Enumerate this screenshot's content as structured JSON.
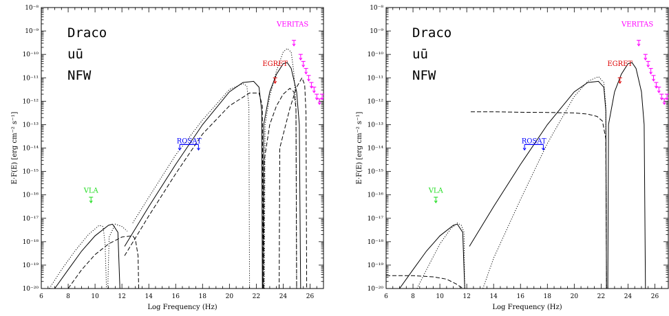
{
  "chart_data": [
    {
      "type": "line",
      "xlabel": "Log Frequency (Hz)",
      "ylabel": "E·F(E) [erg cm⁻² s⁻¹]",
      "xlim": [
        6,
        27
      ],
      "ylim_log10": [
        -20,
        -8
      ],
      "x_ticks": [
        "6",
        "8",
        "10",
        "12",
        "14",
        "16",
        "18",
        "20",
        "22",
        "24",
        "26"
      ],
      "y_ticks": [
        "10⁻²⁰",
        "10⁻¹⁹",
        "10⁻¹⁸",
        "10⁻¹⁷",
        "10⁻¹⁶",
        "10⁻¹⁵",
        "10⁻¹⁴",
        "10⁻¹³",
        "10⁻¹²",
        "10⁻¹¹",
        "10⁻¹⁰",
        "10⁻⁹",
        "10⁻⁸"
      ],
      "labels": [
        "Draco",
        "uū",
        "NFW"
      ],
      "annotations": [
        {
          "text": "VLA",
          "color": "#22dd22",
          "x": 9.7,
          "y_log10": -15.9
        },
        {
          "text": "ROSAT",
          "color": "#0000ff",
          "x": 17.0,
          "y_log10": -13.8
        },
        {
          "text": "EGRET",
          "color": "#dd0000",
          "x": 23.4,
          "y_log10": -10.5
        },
        {
          "text": "VERITAS",
          "color": "#ff00ff",
          "x": 24.7,
          "y_log10": -8.8
        }
      ],
      "upper_limits": [
        {
          "name": "VLA",
          "color": "#22dd22",
          "points": [
            [
              9.7,
              -16.1
            ]
          ]
        },
        {
          "name": "ROSAT",
          "color": "#0000ff",
          "points": [
            [
              17.0,
              -13.85
            ]
          ],
          "band": [
            16.3,
            17.7
          ]
        },
        {
          "name": "EGRET",
          "color": "#dd0000",
          "points": [
            [
              23.4,
              -11.0
            ]
          ]
        },
        {
          "name": "VERITAS",
          "color": "#ff00ff",
          "points": [
            [
              24.8,
              -9.4
            ],
            [
              25.3,
              -10.0
            ],
            [
              25.5,
              -10.3
            ],
            [
              25.7,
              -10.6
            ],
            [
              25.9,
              -10.9
            ],
            [
              26.1,
              -11.2
            ],
            [
              26.3,
              -11.4
            ],
            [
              26.5,
              -11.7
            ],
            [
              26.7,
              -11.9
            ],
            [
              26.9,
              -11.7
            ]
          ]
        }
      ],
      "series": [
        {
          "style": "solid",
          "points": [
            [
              7.0,
              -20.0
            ],
            [
              8.0,
              -19.2
            ],
            [
              9.0,
              -18.4
            ],
            [
              10.0,
              -17.75
            ],
            [
              11.0,
              -17.3
            ],
            [
              11.3,
              -17.25
            ],
            [
              11.7,
              -17.6
            ],
            [
              11.85,
              -20.0
            ]
          ]
        },
        {
          "style": "dotted",
          "points": [
            [
              6.6,
              -20.0
            ],
            [
              7.5,
              -19.2
            ],
            [
              8.5,
              -18.4
            ],
            [
              9.5,
              -17.7
            ],
            [
              10.3,
              -17.3
            ],
            [
              10.6,
              -17.35
            ],
            [
              10.75,
              -18.1
            ],
            [
              10.85,
              -20.0
            ]
          ]
        },
        {
          "style": "dotted",
          "points": [
            [
              10.95,
              -20.0
            ],
            [
              11.05,
              -17.8
            ],
            [
              11.5,
              -17.25
            ],
            [
              12.0,
              -17.35
            ],
            [
              12.4,
              -17.55
            ]
          ]
        },
        {
          "style": "dashed",
          "points": [
            [
              8.0,
              -20.0
            ],
            [
              9.0,
              -19.2
            ],
            [
              10.0,
              -18.55
            ],
            [
              11.0,
              -18.1
            ],
            [
              12.0,
              -17.8
            ],
            [
              12.8,
              -17.75
            ],
            [
              13.0,
              -17.9
            ],
            [
              13.2,
              -18.6
            ],
            [
              13.25,
              -20.0
            ]
          ]
        },
        {
          "style": "solid",
          "points": [
            [
              12.2,
              -18.2
            ],
            [
              14.0,
              -16.5
            ],
            [
              16.0,
              -14.7
            ],
            [
              18.0,
              -13.0
            ],
            [
              20.0,
              -11.6
            ],
            [
              21.0,
              -11.2
            ],
            [
              21.8,
              -11.15
            ],
            [
              22.2,
              -11.4
            ],
            [
              22.4,
              -12.4
            ],
            [
              22.45,
              -20.0
            ]
          ]
        },
        {
          "style": "dotted",
          "points": [
            [
              12.8,
              -17.2
            ],
            [
              14.0,
              -16.1
            ],
            [
              16.0,
              -14.3
            ],
            [
              18.0,
              -12.8
            ],
            [
              20.0,
              -11.5
            ],
            [
              21.0,
              -11.25
            ],
            [
              21.3,
              -11.35
            ],
            [
              21.45,
              -12.2
            ],
            [
              21.5,
              -20.0
            ]
          ]
        },
        {
          "style": "dashed",
          "points": [
            [
              12.2,
              -18.6
            ],
            [
              14.0,
              -16.9
            ],
            [
              16.0,
              -15.1
            ],
            [
              18.0,
              -13.4
            ],
            [
              20.0,
              -12.2
            ],
            [
              21.5,
              -11.65
            ],
            [
              22.2,
              -11.65
            ],
            [
              22.45,
              -12.2
            ],
            [
              22.5,
              -20.0
            ]
          ]
        },
        {
          "style": "solid",
          "points": [
            [
              22.5,
              -20.0
            ],
            [
              22.55,
              -13.0
            ],
            [
              23.0,
              -11.6
            ],
            [
              23.5,
              -10.85
            ],
            [
              24.0,
              -10.4
            ],
            [
              24.3,
              -10.35
            ],
            [
              24.6,
              -10.6
            ],
            [
              25.0,
              -11.6
            ],
            [
              25.2,
              -13.0
            ],
            [
              25.3,
              -20.0
            ]
          ]
        },
        {
          "style": "dotted",
          "points": [
            [
              22.6,
              -20.0
            ],
            [
              22.65,
              -13.0
            ],
            [
              23.0,
              -11.8
            ],
            [
              23.5,
              -10.7
            ],
            [
              24.0,
              -9.9
            ],
            [
              24.3,
              -9.75
            ],
            [
              24.6,
              -9.9
            ],
            [
              24.8,
              -10.8
            ],
            [
              24.95,
              -12.2
            ],
            [
              25.0,
              -20.0
            ]
          ]
        },
        {
          "style": "dashed",
          "points": [
            [
              22.55,
              -20.0
            ],
            [
              22.6,
              -14.5
            ],
            [
              23.0,
              -13.0
            ],
            [
              23.5,
              -12.2
            ],
            [
              24.0,
              -11.7
            ],
            [
              24.5,
              -11.45
            ],
            [
              24.8,
              -11.6
            ],
            [
              24.95,
              -12.3
            ],
            [
              25.0,
              -20.0
            ]
          ]
        },
        {
          "style": "dashed",
          "points": [
            [
              23.7,
              -20.0
            ],
            [
              23.75,
              -14.0
            ],
            [
              24.5,
              -12.3
            ],
            [
              25.0,
              -11.4
            ],
            [
              25.4,
              -11.0
            ],
            [
              25.6,
              -11.3
            ],
            [
              25.7,
              -12.5
            ],
            [
              25.75,
              -20.0
            ]
          ]
        }
      ]
    },
    {
      "type": "line",
      "xlabel": "Log Frequency (Hz)",
      "ylabel": "E·F(E) [erg cm⁻² s⁻¹]",
      "xlim": [
        6,
        27
      ],
      "ylim_log10": [
        -20,
        -8
      ],
      "x_ticks": [
        "6",
        "8",
        "10",
        "12",
        "14",
        "16",
        "18",
        "20",
        "22",
        "24",
        "26"
      ],
      "y_ticks": [
        "10⁻²⁰",
        "10⁻¹⁹",
        "10⁻¹⁸",
        "10⁻¹⁷",
        "10⁻¹⁶",
        "10⁻¹⁵",
        "10⁻¹⁴",
        "10⁻¹³",
        "10⁻¹²",
        "10⁻¹¹",
        "10⁻¹⁰",
        "10⁻⁹",
        "10⁻⁸"
      ],
      "labels": [
        "Draco",
        "uū",
        "NFW"
      ],
      "annotations": [
        {
          "text": "VLA",
          "color": "#22dd22",
          "x": 9.7,
          "y_log10": -15.9
        },
        {
          "text": "ROSAT",
          "color": "#0000ff",
          "x": 17.0,
          "y_log10": -13.8
        },
        {
          "text": "EGRET",
          "color": "#dd0000",
          "x": 23.4,
          "y_log10": -10.5
        },
        {
          "text": "VERITAS",
          "color": "#ff00ff",
          "x": 24.7,
          "y_log10": -8.8
        }
      ],
      "upper_limits": [
        {
          "name": "VLA",
          "color": "#22dd22",
          "points": [
            [
              9.7,
              -16.1
            ]
          ]
        },
        {
          "name": "ROSAT",
          "color": "#0000ff",
          "points": [
            [
              17.0,
              -13.85
            ]
          ],
          "band": [
            16.3,
            17.7
          ]
        },
        {
          "name": "EGRET",
          "color": "#dd0000",
          "points": [
            [
              23.4,
              -11.0
            ]
          ]
        },
        {
          "name": "VERITAS",
          "color": "#ff00ff",
          "points": [
            [
              24.8,
              -9.4
            ],
            [
              25.3,
              -10.0
            ],
            [
              25.5,
              -10.3
            ],
            [
              25.7,
              -10.6
            ],
            [
              25.9,
              -10.9
            ],
            [
              26.1,
              -11.2
            ],
            [
              26.3,
              -11.4
            ],
            [
              26.5,
              -11.7
            ],
            [
              26.7,
              -11.9
            ],
            [
              26.9,
              -11.7
            ]
          ]
        }
      ],
      "series": [
        {
          "style": "solid",
          "points": [
            [
              7.0,
              -20.0
            ],
            [
              8.0,
              -19.2
            ],
            [
              9.0,
              -18.4
            ],
            [
              10.0,
              -17.75
            ],
            [
              11.0,
              -17.3
            ],
            [
              11.3,
              -17.25
            ],
            [
              11.7,
              -17.6
            ],
            [
              11.85,
              -20.0
            ]
          ]
        },
        {
          "style": "dotted",
          "points": [
            [
              8.3,
              -20.0
            ],
            [
              9.0,
              -19.2
            ],
            [
              10.0,
              -18.1
            ],
            [
              10.8,
              -17.45
            ],
            [
              11.3,
              -17.2
            ],
            [
              11.6,
              -17.3
            ],
            [
              11.8,
              -17.6
            ],
            [
              11.85,
              -20.0
            ]
          ]
        },
        {
          "style": "dashed",
          "points": [
            [
              6.0,
              -19.45
            ],
            [
              8.0,
              -19.45
            ],
            [
              9.5,
              -19.5
            ],
            [
              10.5,
              -19.6
            ],
            [
              11.2,
              -19.8
            ],
            [
              11.6,
              -19.95
            ],
            [
              11.7,
              -20.0
            ]
          ]
        },
        {
          "style": "solid",
          "points": [
            [
              12.2,
              -18.2
            ],
            [
              14.0,
              -16.5
            ],
            [
              16.0,
              -14.7
            ],
            [
              18.0,
              -13.0
            ],
            [
              20.0,
              -11.6
            ],
            [
              21.0,
              -11.2
            ],
            [
              21.8,
              -11.15
            ],
            [
              22.2,
              -11.4
            ],
            [
              22.35,
              -12.4
            ],
            [
              22.4,
              -20.0
            ]
          ]
        },
        {
          "style": "dotted",
          "points": [
            [
              13.2,
              -20.0
            ],
            [
              14.0,
              -18.7
            ],
            [
              16.0,
              -16.2
            ],
            [
              18.0,
              -13.8
            ],
            [
              20.0,
              -11.8
            ],
            [
              21.0,
              -11.15
            ],
            [
              21.8,
              -10.95
            ],
            [
              22.2,
              -11.2
            ],
            [
              22.35,
              -12.2
            ],
            [
              22.4,
              -20.0
            ]
          ]
        },
        {
          "style": "dashed",
          "points": [
            [
              12.3,
              -12.45
            ],
            [
              14.0,
              -12.45
            ],
            [
              16.0,
              -12.47
            ],
            [
              18.0,
              -12.48
            ],
            [
              20.0,
              -12.5
            ],
            [
              21.0,
              -12.55
            ],
            [
              21.7,
              -12.65
            ],
            [
              22.1,
              -12.85
            ],
            [
              22.35,
              -13.6
            ],
            [
              22.4,
              -20.0
            ]
          ]
        },
        {
          "style": "solid",
          "points": [
            [
              22.5,
              -20.0
            ],
            [
              22.55,
              -13.0
            ],
            [
              23.0,
              -11.6
            ],
            [
              23.5,
              -10.85
            ],
            [
              24.0,
              -10.4
            ],
            [
              24.3,
              -10.35
            ],
            [
              24.6,
              -10.6
            ],
            [
              25.0,
              -11.6
            ],
            [
              25.2,
              -13.0
            ],
            [
              25.3,
              -20.0
            ]
          ]
        }
      ]
    }
  ]
}
